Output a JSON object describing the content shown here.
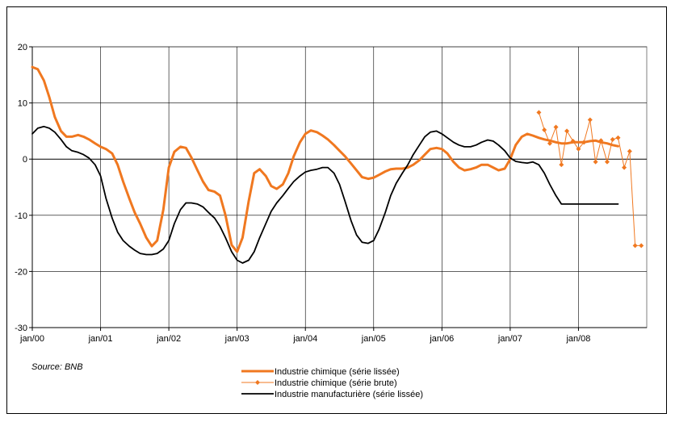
{
  "chart_data": {
    "type": "line",
    "title": "",
    "xlabel": "",
    "ylabel": "",
    "ylim": [
      -30,
      20
    ],
    "yticks": [
      20,
      10,
      0,
      -10,
      -20,
      -30
    ],
    "xlim": [
      2000.0,
      2009.0
    ],
    "xticks": [
      {
        "label": "jan/00",
        "value": 2000.0
      },
      {
        "label": "jan/01",
        "value": 2001.0
      },
      {
        "label": "jan/02",
        "value": 2002.0
      },
      {
        "label": "jan/03",
        "value": 2003.0
      },
      {
        "label": "jan/04",
        "value": 2004.0
      },
      {
        "label": "jan/05",
        "value": 2005.0
      },
      {
        "label": "jan/06",
        "value": 2006.0
      },
      {
        "label": "jan/07",
        "value": 2007.0
      },
      {
        "label": "jan/08",
        "value": 2008.0
      }
    ],
    "grid": true,
    "legend_position": "bottom-center",
    "source_note": "Source: BNB",
    "series": [
      {
        "name": "Industrie chimique (série lissée)",
        "color": "#f07820",
        "style": "thick-line",
        "x": [
          2000.0,
          2000.08,
          2000.17,
          2000.25,
          2000.33,
          2000.42,
          2000.5,
          2000.58,
          2000.67,
          2000.75,
          2000.83,
          2000.92,
          2001.0,
          2001.08,
          2001.17,
          2001.25,
          2001.33,
          2001.42,
          2001.5,
          2001.58,
          2001.67,
          2001.75,
          2001.83,
          2001.92,
          2002.0,
          2002.08,
          2002.17,
          2002.25,
          2002.33,
          2002.42,
          2002.5,
          2002.58,
          2002.67,
          2002.75,
          2002.83,
          2002.92,
          2003.0,
          2003.08,
          2003.17,
          2003.25,
          2003.33,
          2003.42,
          2003.5,
          2003.58,
          2003.67,
          2003.75,
          2003.83,
          2003.92,
          2004.0,
          2004.08,
          2004.17,
          2004.25,
          2004.33,
          2004.42,
          2004.5,
          2004.58,
          2004.67,
          2004.75,
          2004.83,
          2004.92,
          2005.0,
          2005.08,
          2005.17,
          2005.25,
          2005.33,
          2005.42,
          2005.5,
          2005.58,
          2005.67,
          2005.75,
          2005.83,
          2005.92,
          2006.0,
          2006.08,
          2006.17,
          2006.25,
          2006.33,
          2006.42,
          2006.5,
          2006.58,
          2006.67,
          2006.75,
          2006.83,
          2006.92,
          2007.0,
          2007.08,
          2007.17,
          2007.25,
          2007.33,
          2007.42,
          2007.5,
          2007.58,
          2007.67,
          2007.75,
          2007.83,
          2007.92,
          2008.0,
          2008.08,
          2008.17,
          2008.25,
          2008.33,
          2008.42,
          2008.5,
          2008.58
        ],
        "y": [
          16.4,
          16.0,
          14.0,
          11.0,
          7.5,
          5.0,
          4.0,
          4.0,
          4.3,
          4.0,
          3.5,
          2.8,
          2.2,
          1.8,
          1.0,
          -1.0,
          -4.0,
          -7.0,
          -9.5,
          -11.5,
          -14.0,
          -15.5,
          -14.5,
          -9.0,
          -1.5,
          1.3,
          2.2,
          2.0,
          0.3,
          -2.0,
          -4.0,
          -5.5,
          -5.8,
          -6.5,
          -10.0,
          -15.3,
          -16.5,
          -14.0,
          -7.5,
          -2.5,
          -1.8,
          -3.0,
          -4.8,
          -5.3,
          -4.5,
          -2.5,
          0.5,
          3.0,
          4.5,
          5.1,
          4.8,
          4.2,
          3.5,
          2.5,
          1.5,
          0.5,
          -0.8,
          -2.0,
          -3.2,
          -3.5,
          -3.3,
          -2.8,
          -2.2,
          -1.8,
          -1.7,
          -1.7,
          -1.5,
          -1.0,
          -0.2,
          0.8,
          1.8,
          2.0,
          1.8,
          1.0,
          -0.5,
          -1.5,
          -2.0,
          -1.8,
          -1.5,
          -1.0,
          -1.0,
          -1.5,
          -2.0,
          -1.7,
          0.0,
          2.5,
          4.0,
          4.5,
          4.2,
          3.8,
          3.5,
          3.3,
          3.0,
          2.8,
          2.8,
          3.0,
          3.0,
          3.0,
          3.2,
          3.3,
          3.0,
          2.8,
          2.5,
          2.3
        ]
      },
      {
        "name": "Industrie chimique (série brute)",
        "color": "#f07820",
        "style": "thin-line-diamond-markers",
        "x": [
          2007.42,
          2007.5,
          2007.58,
          2007.67,
          2007.75,
          2007.83,
          2007.92,
          2008.0,
          2008.08,
          2008.17,
          2008.25,
          2008.33,
          2008.42,
          2008.5,
          2008.58,
          2008.67,
          2008.75,
          2008.83,
          2008.92
        ],
        "y": [
          8.3,
          5.2,
          2.8,
          5.7,
          -1.0,
          5.0,
          3.2,
          1.8,
          3.0,
          7.0,
          -0.5,
          3.3,
          -0.5,
          3.5,
          3.8,
          -1.5,
          1.4,
          -15.4,
          -15.4
        ]
      },
      {
        "name": "Industrie manufacturière (série lissée)",
        "color": "#000000",
        "style": "line",
        "x": [
          2000.0,
          2000.08,
          2000.17,
          2000.25,
          2000.33,
          2000.42,
          2000.5,
          2000.58,
          2000.67,
          2000.75,
          2000.83,
          2000.92,
          2001.0,
          2001.08,
          2001.17,
          2001.25,
          2001.33,
          2001.42,
          2001.5,
          2001.58,
          2001.67,
          2001.75,
          2001.83,
          2001.92,
          2002.0,
          2002.08,
          2002.17,
          2002.25,
          2002.33,
          2002.42,
          2002.5,
          2002.58,
          2002.67,
          2002.75,
          2002.83,
          2002.92,
          2003.0,
          2003.08,
          2003.17,
          2003.25,
          2003.33,
          2003.42,
          2003.5,
          2003.58,
          2003.67,
          2003.75,
          2003.83,
          2003.92,
          2004.0,
          2004.08,
          2004.17,
          2004.25,
          2004.33,
          2004.42,
          2004.5,
          2004.58,
          2004.67,
          2004.75,
          2004.83,
          2004.92,
          2005.0,
          2005.08,
          2005.17,
          2005.25,
          2005.33,
          2005.42,
          2005.5,
          2005.58,
          2005.67,
          2005.75,
          2005.83,
          2005.92,
          2006.0,
          2006.08,
          2006.17,
          2006.25,
          2006.33,
          2006.42,
          2006.5,
          2006.58,
          2006.67,
          2006.75,
          2006.83,
          2006.92,
          2007.0,
          2007.08,
          2007.17,
          2007.25,
          2007.33,
          2007.42,
          2007.5,
          2007.58,
          2007.67,
          2007.75,
          2007.83,
          2007.92,
          2008.0,
          2008.08,
          2008.17,
          2008.25,
          2008.33,
          2008.42,
          2008.5,
          2008.58
        ],
        "y": [
          4.5,
          5.5,
          5.8,
          5.5,
          4.8,
          3.5,
          2.2,
          1.5,
          1.2,
          0.8,
          0.2,
          -1.0,
          -3.0,
          -7.0,
          -10.5,
          -13.0,
          -14.5,
          -15.5,
          -16.2,
          -16.8,
          -17.0,
          -17.0,
          -16.8,
          -16.0,
          -14.5,
          -11.5,
          -9.0,
          -7.8,
          -7.8,
          -8.0,
          -8.5,
          -9.5,
          -10.5,
          -12.0,
          -14.0,
          -16.5,
          -18.0,
          -18.5,
          -18.0,
          -16.5,
          -14.0,
          -11.5,
          -9.3,
          -7.8,
          -6.5,
          -5.2,
          -4.0,
          -3.0,
          -2.3,
          -2.0,
          -1.8,
          -1.5,
          -1.5,
          -2.5,
          -4.5,
          -7.5,
          -11.0,
          -13.5,
          -14.8,
          -15.0,
          -14.5,
          -12.5,
          -9.5,
          -6.5,
          -4.3,
          -2.5,
          -1.0,
          0.8,
          2.5,
          4.0,
          4.8,
          5.0,
          4.5,
          3.8,
          3.0,
          2.5,
          2.2,
          2.2,
          2.5,
          3.0,
          3.4,
          3.2,
          2.5,
          1.5,
          0.2,
          -0.4,
          -0.6,
          -0.7,
          -0.5,
          -1.0,
          -2.5,
          -4.5,
          -6.5,
          -8.0,
          -8.0,
          -8.0,
          -8.0,
          -8.0,
          -8.0,
          -8.0,
          -8.0,
          -8.0,
          -8.0,
          -8.0
        ]
      }
    ]
  }
}
